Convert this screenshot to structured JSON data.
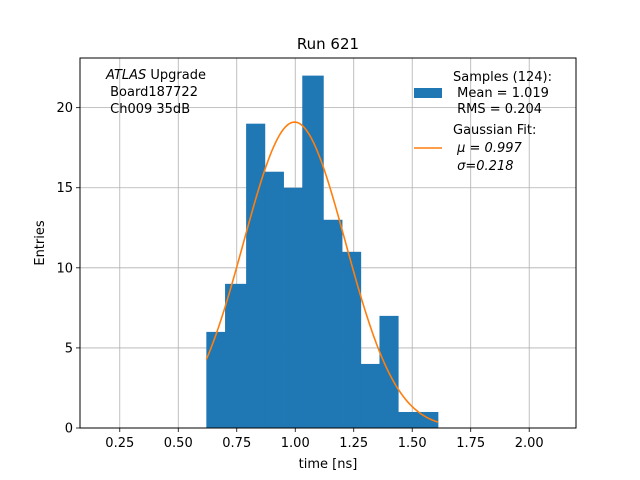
{
  "chart_data": {
    "type": "bar",
    "title": "Run 621",
    "xlabel": "time [ns]",
    "ylabel": "Entries",
    "xlim": [
      0.08,
      2.2
    ],
    "ylim": [
      0,
      23.1
    ],
    "grid": true,
    "x_ticks": [
      0.25,
      0.5,
      0.75,
      1.0,
      1.25,
      1.5,
      1.75,
      2.0
    ],
    "x_tick_labels": [
      "0.25",
      "0.50",
      "0.75",
      "1.00",
      "1.25",
      "1.50",
      "1.75",
      "2.00"
    ],
    "y_ticks": [
      0,
      5,
      10,
      15,
      20
    ],
    "y_tick_labels": [
      "0",
      "5",
      "10",
      "15",
      "20"
    ],
    "bin_edges": [
      0.62,
      0.7,
      0.79,
      0.87,
      0.95,
      1.03,
      1.12,
      1.2,
      1.28,
      1.36,
      1.44,
      1.53,
      1.61
    ],
    "values": [
      6,
      9,
      19,
      16,
      15,
      22,
      13,
      11,
      4,
      7,
      1,
      1
    ],
    "bar_color": "#1f77b4",
    "fit": {
      "name": "Gaussian Fit:",
      "mu_text": "μ = 0.997",
      "sigma_text": "σ=0.218",
      "mu": 0.997,
      "sigma": 0.218,
      "amplitude": 19.1,
      "x_range": [
        0.62,
        1.61
      ],
      "color": "#ff7f0e"
    },
    "legend": {
      "placement": "top-right",
      "samples_label": "Samples (124):",
      "mean_text": " Mean = 1.019",
      "rms_text": " RMS = 0.204",
      "fit_label": "Gaussian Fit:",
      "fit_mu_text": " μ = 0.997",
      "fit_sigma_text": " σ=0.218"
    },
    "annotation": {
      "line1_italic": "ATLAS",
      "line1_rest": " Upgrade",
      "line2": " Board187722",
      "line3": " Ch009 35dB"
    }
  }
}
